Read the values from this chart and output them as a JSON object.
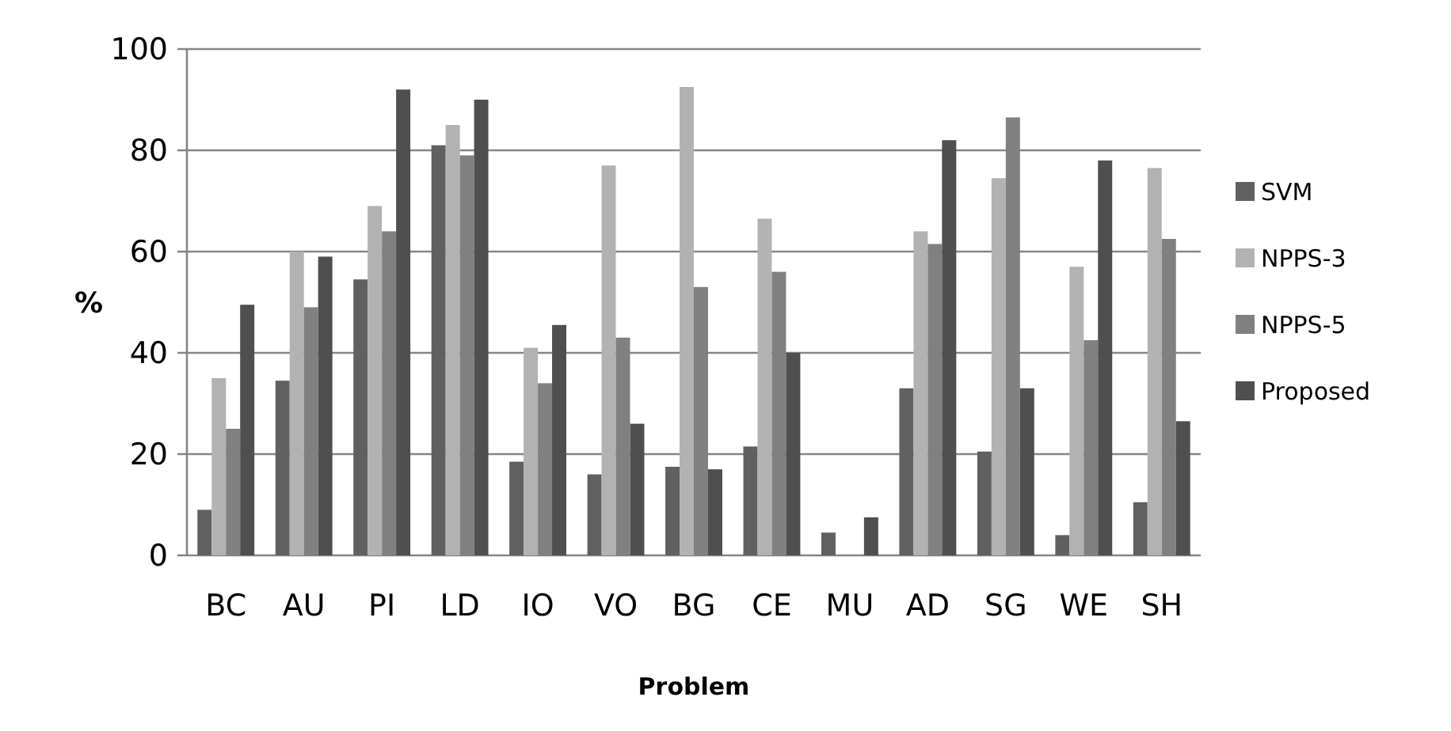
{
  "chart_data": {
    "type": "bar",
    "xlabel": "Problem",
    "ylabel": "%",
    "categories": [
      "BC",
      "AU",
      "PI",
      "LD",
      "IO",
      "VO",
      "BG",
      "CE",
      "MU",
      "AD",
      "SG",
      "WE",
      "SH"
    ],
    "series": [
      {
        "name": "SVM",
        "color": "#606060",
        "values": [
          9,
          34.5,
          54.5,
          81,
          18.5,
          16,
          17.5,
          21.5,
          4.5,
          33,
          20.5,
          4,
          10.5
        ]
      },
      {
        "name": "NPPS-3",
        "color": "#b2b2b2",
        "values": [
          35,
          60,
          69,
          85,
          41,
          77,
          92.5,
          66.5,
          0,
          64,
          74.5,
          57,
          76.5
        ]
      },
      {
        "name": "NPPS-5",
        "color": "#808080",
        "values": [
          25,
          49,
          64,
          79,
          34,
          43,
          53,
          56,
          0,
          61.5,
          86.5,
          42.5,
          62.5
        ]
      },
      {
        "name": "Proposed",
        "color": "#4f4f4f",
        "values": [
          49.5,
          59,
          92,
          90,
          45.5,
          26,
          17,
          40,
          7.5,
          82,
          33,
          78,
          26.5
        ]
      }
    ],
    "ylim": [
      0,
      100
    ],
    "yticks": [
      0,
      20,
      40,
      60,
      80,
      100
    ],
    "grid": "y",
    "legend": "right"
  }
}
